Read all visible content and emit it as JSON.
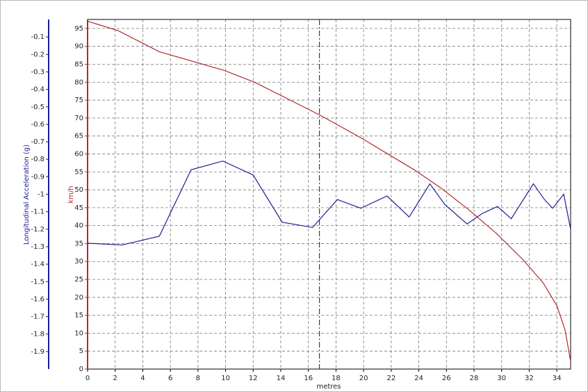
{
  "chart_data": {
    "type": "line",
    "xlabel": "metres",
    "ylabel": "km/h",
    "y2label": "Longitudinal Acceleration (g)",
    "xlim": [
      0,
      35
    ],
    "xticks": [
      0,
      2,
      4,
      6,
      8,
      10,
      12,
      14,
      16,
      18,
      20,
      22,
      24,
      26,
      28,
      30,
      32,
      34
    ],
    "ylim": [
      0,
      97.5
    ],
    "yticks": [
      0,
      5,
      10,
      15,
      20,
      25,
      30,
      35,
      40,
      45,
      50,
      55,
      60,
      65,
      70,
      75,
      80,
      85,
      90,
      95
    ],
    "y2lim": [
      -2,
      0
    ],
    "y2ticks": [
      -1.9,
      -1.8,
      -1.7,
      -1.6,
      -1.5,
      -1.4,
      -1.3,
      -1.2,
      -1.1,
      -1,
      -0.9,
      -0.8,
      -0.7,
      -0.6,
      -0.5,
      -0.4,
      -0.3,
      -0.2,
      -0.1
    ],
    "grid": true,
    "marker_x": 16.8,
    "series": [
      {
        "color": "#b22a2a",
        "axis": "y",
        "x": [
          0,
          2.2,
          5.2,
          9.9,
          12.1,
          16.8,
          19.8,
          23.7,
          25.6,
          27.6,
          29.6,
          31.5,
          33,
          34,
          34.6,
          35
        ],
        "values": [
          97,
          94.4,
          88.5,
          83.3,
          80,
          70.9,
          64.5,
          55.5,
          50.5,
          44.5,
          37.9,
          30.7,
          24.1,
          17.7,
          10.9,
          2.1
        ]
      },
      {
        "color": "#1c1c90",
        "axis": "y2",
        "x": [
          0,
          2.5,
          5.2,
          7.5,
          9.8,
          12,
          14.1,
          16.3,
          18.1,
          19.8,
          21.7,
          23.3,
          24.8,
          25.9,
          27.5,
          28.6,
          29.7,
          30.7,
          32.3,
          33.1,
          33.7,
          34.5,
          35
        ],
        "values": [
          -1.28,
          -1.29,
          -1.24,
          -0.86,
          -0.81,
          -0.89,
          -1.16,
          -1.19,
          -1.03,
          -1.08,
          -1.01,
          -1.13,
          -0.94,
          -1.06,
          -1.17,
          -1.11,
          -1.07,
          -1.14,
          -0.94,
          -1.03,
          -1.08,
          -1,
          -1.2
        ]
      }
    ]
  }
}
